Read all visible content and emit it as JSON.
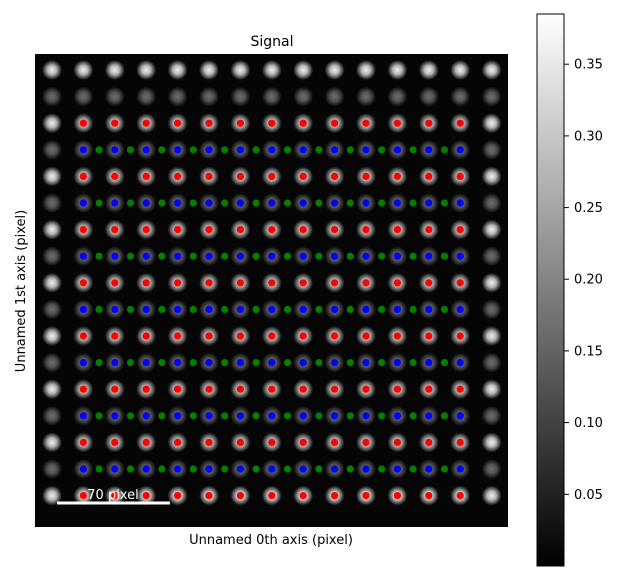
{
  "chart_data": {
    "type": "heatmap",
    "title": "Signal",
    "xlabel": "Unnamed 0th axis (pixel)",
    "ylabel": "Unnamed 1st axis (pixel)",
    "scalebar": {
      "label": "70 pixel",
      "length_px_data": 70
    },
    "image_extent": {
      "x": [
        0,
        300
      ],
      "y": [
        0,
        300
      ]
    },
    "lattice": {
      "columns": 15,
      "rows": 17,
      "atom_intensity_edge_rows": 0.36,
      "atom_intensity_odd_rows": 0.16,
      "atom_intensity_inner": 0.32
    },
    "colorbar": {
      "colormap": "gray",
      "range": [
        0.0,
        0.385
      ],
      "ticks": [
        0.05,
        0.1,
        0.15,
        0.2,
        0.25,
        0.3,
        0.35
      ],
      "tick_labels": [
        "0.05",
        "0.10",
        "0.15",
        "0.20",
        "0.25",
        "0.30",
        "0.35"
      ]
    },
    "markers": [
      {
        "color": "#ff0000",
        "name": "red",
        "rows": [
          2,
          4,
          6,
          8,
          10,
          12,
          14,
          16
        ],
        "cols": [
          1,
          2,
          3,
          4,
          5,
          6,
          7,
          8,
          9,
          10,
          11,
          12,
          13
        ]
      },
      {
        "color": "#0000ff",
        "name": "blue",
        "rows": [
          3,
          5,
          7,
          9,
          11,
          13,
          15
        ],
        "cols": [
          1,
          2,
          3,
          4,
          5,
          6,
          7,
          8,
          9,
          10,
          11,
          12,
          13
        ]
      },
      {
        "color": "#008000",
        "name": "green",
        "rows": [
          3,
          5,
          7,
          9,
          11,
          13,
          15
        ],
        "cols_half": [
          1.5,
          2.5,
          3.5,
          4.5,
          5.5,
          6.5,
          7.5,
          8.5,
          9.5,
          10.5,
          11.5,
          12.5
        ]
      }
    ],
    "grid": false,
    "legend": "none"
  }
}
